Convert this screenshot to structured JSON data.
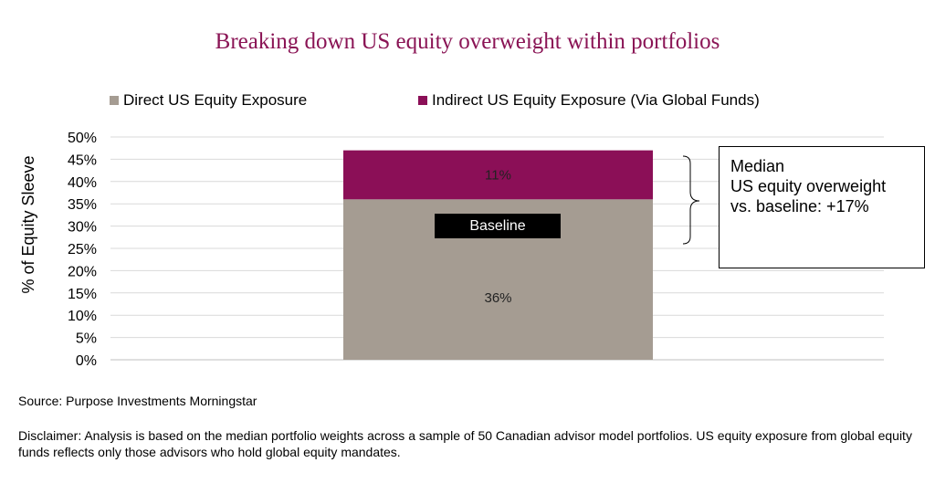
{
  "title": "Breaking down US equity overweight within portfolios",
  "legend": {
    "direct_label": "Direct US Equity Exposure",
    "indirect_label": "Indirect US Equity Exposure (Via Global Funds)"
  },
  "colors": {
    "title": "#8a1455",
    "direct": "#a59c92",
    "indirect": "#8b0f57",
    "gridline": "#d9d9d9"
  },
  "chart_data": {
    "type": "bar",
    "stacked": true,
    "categories": [
      ""
    ],
    "series": [
      {
        "name": "Direct US Equity Exposure",
        "values": [
          36
        ],
        "label": "36%"
      },
      {
        "name": "Indirect US Equity Exposure (Via Global Funds)",
        "values": [
          11
        ],
        "label": "11%"
      }
    ],
    "ylabel": "% of Equity Sleeve",
    "ylim": [
      0,
      50
    ],
    "yticks": [
      0,
      5,
      10,
      15,
      20,
      25,
      30,
      35,
      40,
      45,
      50
    ],
    "ytick_labels": [
      "0%",
      "5%",
      "10%",
      "15%",
      "20%",
      "25%",
      "30%",
      "35%",
      "40%",
      "45%",
      "50%"
    ],
    "grid": true,
    "legend_position": "top",
    "annotations": {
      "baseline_label": "Baseline",
      "callout_lines": [
        "Median",
        "US equity overweight",
        "vs. baseline: +17%"
      ]
    }
  },
  "source": "Source: Purpose Investments Morningstar",
  "disclaimer": "Disclaimer: Analysis is based on the median portfolio weights across a sample of 50 Canadian advisor model portfolios. US equity exposure from global equity funds reflects only those advisors who hold global equity mandates."
}
